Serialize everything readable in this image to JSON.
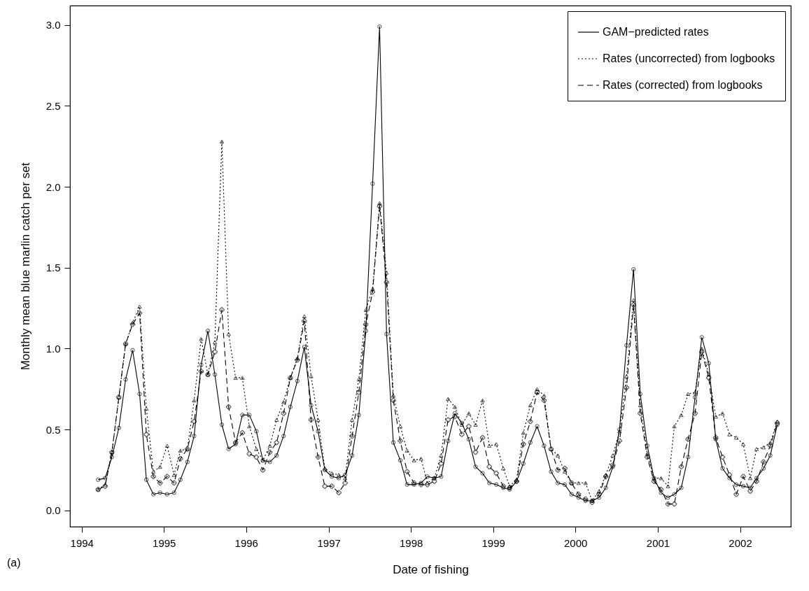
{
  "chart_data": {
    "type": "line",
    "xlabel": "Date of fishing",
    "ylabel": "Monthly mean blue marlin catch per set",
    "annotations": [
      "(a)"
    ],
    "x": [
      "1994-03-15",
      "1994-04-15",
      "1994-05-15",
      "1994-06-15",
      "1994-07-15",
      "1994-08-15",
      "1994-09-15",
      "1994-10-15",
      "1994-11-15",
      "1994-12-15",
      "1995-01-15",
      "1995-02-15",
      "1995-03-15",
      "1995-04-15",
      "1995-05-15",
      "1995-06-15",
      "1995-07-15",
      "1995-08-15",
      "1995-09-15",
      "1995-10-15",
      "1995-11-15",
      "1995-12-15",
      "1996-01-15",
      "1996-02-15",
      "1996-03-15",
      "1996-04-15",
      "1996-05-15",
      "1996-06-15",
      "1996-07-15",
      "1996-08-15",
      "1996-09-15",
      "1996-10-15",
      "1996-11-15",
      "1996-12-15",
      "1997-01-15",
      "1997-02-15",
      "1997-03-15",
      "1997-04-15",
      "1997-05-15",
      "1997-06-15",
      "1997-07-15",
      "1997-08-15",
      "1997-09-15",
      "1997-10-15",
      "1997-11-15",
      "1997-12-15",
      "1998-01-15",
      "1998-02-15",
      "1998-03-15",
      "1998-04-15",
      "1998-05-15",
      "1998-06-15",
      "1998-07-15",
      "1998-08-15",
      "1998-09-15",
      "1998-10-15",
      "1998-11-15",
      "1998-12-15",
      "1999-01-15",
      "1999-02-15",
      "1999-03-15",
      "1999-04-15",
      "1999-05-15",
      "1999-06-15",
      "1999-07-15",
      "1999-08-15",
      "1999-09-15",
      "1999-10-15",
      "1999-11-15",
      "1999-12-15",
      "2000-01-15",
      "2000-02-15",
      "2000-03-15",
      "2000-04-15",
      "2000-05-15",
      "2000-06-15",
      "2000-07-15",
      "2000-08-15",
      "2000-09-15",
      "2000-10-15",
      "2000-11-15",
      "2000-12-15",
      "2001-01-15",
      "2001-02-15",
      "2001-03-15",
      "2001-04-15",
      "2001-05-15",
      "2001-06-15",
      "2001-07-15",
      "2001-08-15",
      "2001-09-15",
      "2001-10-15",
      "2001-11-15",
      "2001-12-15",
      "2002-01-15",
      "2002-02-15",
      "2002-03-15",
      "2002-04-15",
      "2002-05-15",
      "2002-06-15"
    ],
    "series": [
      {
        "name": "GAM−predicted rates",
        "color": "#000000",
        "line_style": "solid",
        "marker": "circle",
        "values": [
          0.19,
          0.2,
          0.33,
          0.51,
          0.81,
          0.99,
          0.72,
          0.19,
          0.1,
          0.11,
          0.1,
          0.11,
          0.19,
          0.3,
          0.46,
          0.9,
          1.11,
          0.84,
          0.53,
          0.38,
          0.41,
          0.59,
          0.59,
          0.49,
          0.31,
          0.3,
          0.34,
          0.46,
          0.64,
          0.8,
          1.01,
          0.65,
          0.49,
          0.25,
          0.21,
          0.2,
          0.22,
          0.34,
          0.59,
          1.11,
          2.02,
          2.99,
          1.09,
          0.42,
          0.31,
          0.16,
          0.16,
          0.17,
          0.21,
          0.2,
          0.21,
          0.43,
          0.6,
          0.54,
          0.44,
          0.27,
          0.23,
          0.17,
          0.16,
          0.14,
          0.13,
          0.18,
          0.29,
          0.42,
          0.52,
          0.4,
          0.24,
          0.17,
          0.16,
          0.1,
          0.08,
          0.06,
          0.06,
          0.08,
          0.14,
          0.27,
          0.5,
          1.02,
          1.49,
          0.72,
          0.4,
          0.2,
          0.11,
          0.08,
          0.1,
          0.14,
          0.33,
          0.7,
          1.07,
          0.91,
          0.44,
          0.26,
          0.2,
          0.16,
          0.15,
          0.14,
          0.2,
          0.26,
          0.34,
          0.53
        ]
      },
      {
        "name": "Rates (uncorrected) from logbooks",
        "color": "#000000",
        "line_style": "dotted",
        "marker": "triangle",
        "values": [
          0.13,
          0.16,
          0.36,
          0.7,
          1.03,
          1.16,
          1.26,
          0.63,
          0.24,
          0.27,
          0.4,
          0.22,
          0.37,
          0.38,
          0.68,
          1.06,
          0.84,
          1.04,
          2.28,
          1.09,
          0.82,
          0.82,
          0.52,
          0.38,
          0.31,
          0.4,
          0.56,
          0.67,
          0.82,
          0.94,
          1.2,
          0.83,
          0.56,
          0.26,
          0.23,
          0.22,
          0.2,
          0.56,
          0.81,
          1.24,
          1.37,
          1.9,
          1.47,
          0.71,
          0.52,
          0.37,
          0.31,
          0.32,
          0.17,
          0.2,
          0.34,
          0.69,
          0.64,
          0.53,
          0.6,
          0.53,
          0.68,
          0.4,
          0.41,
          0.26,
          0.15,
          0.19,
          0.48,
          0.65,
          0.75,
          0.71,
          0.38,
          0.34,
          0.24,
          0.17,
          0.17,
          0.17,
          0.06,
          0.12,
          0.22,
          0.34,
          0.49,
          0.83,
          1.3,
          0.65,
          0.35,
          0.2,
          0.2,
          0.15,
          0.52,
          0.59,
          0.72,
          0.73,
          1.0,
          0.84,
          0.58,
          0.6,
          0.47,
          0.45,
          0.41,
          0.2,
          0.38,
          0.39,
          0.42,
          0.55
        ]
      },
      {
        "name": "Rates (corrected) from logbooks",
        "color": "#000000",
        "line_style": "dashed",
        "marker": "cross",
        "values": [
          0.13,
          0.15,
          0.36,
          0.7,
          1.03,
          1.15,
          1.22,
          0.47,
          0.21,
          0.17,
          0.21,
          0.17,
          0.32,
          0.38,
          0.55,
          0.86,
          0.84,
          0.98,
          1.24,
          0.64,
          0.42,
          0.48,
          0.35,
          0.33,
          0.25,
          0.36,
          0.42,
          0.6,
          0.82,
          0.93,
          1.17,
          0.56,
          0.33,
          0.15,
          0.15,
          0.11,
          0.17,
          0.46,
          0.73,
          1.15,
          1.35,
          1.88,
          1.41,
          0.68,
          0.43,
          0.24,
          0.17,
          0.16,
          0.16,
          0.18,
          0.29,
          0.56,
          0.58,
          0.47,
          0.52,
          0.36,
          0.45,
          0.27,
          0.23,
          0.15,
          0.14,
          0.18,
          0.41,
          0.55,
          0.73,
          0.68,
          0.38,
          0.25,
          0.26,
          0.17,
          0.1,
          0.07,
          0.05,
          0.1,
          0.21,
          0.28,
          0.43,
          0.76,
          1.27,
          0.6,
          0.33,
          0.18,
          0.13,
          0.04,
          0.04,
          0.27,
          0.44,
          0.6,
          0.98,
          0.82,
          0.45,
          0.33,
          0.22,
          0.1,
          0.21,
          0.12,
          0.18,
          0.3,
          0.4,
          0.54
        ]
      }
    ],
    "xlim": [
      "1993-11-10",
      "2002-08-14"
    ],
    "xticks": [
      "1994",
      "1995",
      "1996",
      "1997",
      "1998",
      "1999",
      "2000",
      "2001",
      "2002"
    ],
    "ylim": [
      -0.1,
      3.12
    ],
    "yticks": [
      {
        "value": 0,
        "label": "0.0"
      },
      {
        "value": 0.5,
        "label": "0.5"
      },
      {
        "value": 1,
        "label": "1.0"
      },
      {
        "value": 1.5,
        "label": "1.5"
      },
      {
        "value": 2,
        "label": "2.0"
      },
      {
        "value": 2.5,
        "label": "2.5"
      },
      {
        "value": 3,
        "label": "3.0"
      }
    ],
    "grid": false,
    "legend": "top right"
  }
}
